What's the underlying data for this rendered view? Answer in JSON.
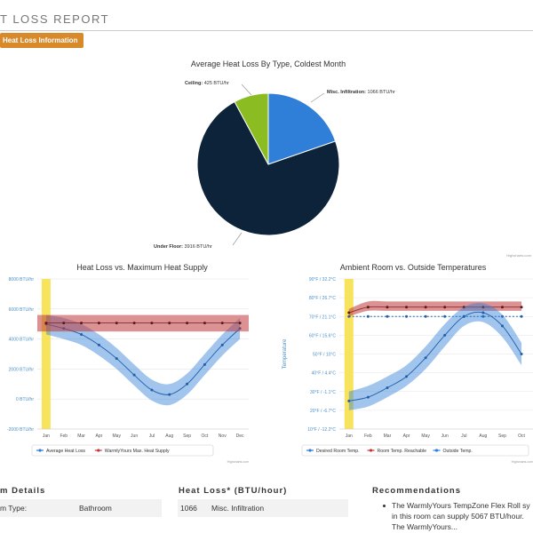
{
  "header": {
    "title": "T LOSS REPORT",
    "tab_label": "Heat Loss Information"
  },
  "chart_data": [
    {
      "type": "pie",
      "title": "Average Heat Loss By Type, Coldest Month",
      "slices": [
        {
          "name": "Misc. Infiltration",
          "label": "Misc. Infiltration: 1066 BTU/hr",
          "value": 1066,
          "color": "#2f7ed8"
        },
        {
          "name": "Under Floor",
          "label": "Under Floor: 3916 BTU/hr",
          "value": 3916,
          "color": "#0d233a"
        },
        {
          "name": "Ceiling",
          "label": "Ceiling: 425 BTU/hr",
          "value": 425,
          "color": "#8bbc21"
        }
      ],
      "credit": "Highcharts.com"
    },
    {
      "type": "line",
      "title": "Heat Loss vs. Maximum Heat Supply",
      "categories": [
        "Jan",
        "Feb",
        "Mar",
        "Apr",
        "May",
        "Jun",
        "Jul",
        "Aug",
        "Sep",
        "Oct",
        "Nov",
        "Dec"
      ],
      "y_ticks": [
        "8000 BTU/hr",
        "6000 BTU/hr",
        "4000 BTU/hr",
        "2000 BTU/hr",
        "0 BTU/hr",
        "-2000 BTU/hr"
      ],
      "ylim": [
        -2000,
        8000
      ],
      "highlight_category": "Jan",
      "series": [
        {
          "name": "Average Heat Loss",
          "color": "#2f7ed8",
          "values": [
            5000,
            4700,
            4300,
            3600,
            2700,
            1600,
            600,
            300,
            1000,
            2300,
            3600,
            4700
          ],
          "band": [
            [
              4300,
              5600
            ],
            [
              4000,
              5400
            ],
            [
              3600,
              5000
            ],
            [
              2900,
              4300
            ],
            [
              2000,
              3400
            ],
            [
              900,
              2300
            ],
            [
              -100,
              1300
            ],
            [
              -400,
              1000
            ],
            [
              300,
              1700
            ],
            [
              1600,
              3000
            ],
            [
              2900,
              4300
            ],
            [
              4000,
              5400
            ]
          ]
        },
        {
          "name": "WarmlyYours Max. Heat Supply",
          "color": "#c0393b",
          "values": [
            5067,
            5067,
            5067,
            5067,
            5067,
            5067,
            5067,
            5067,
            5067,
            5067,
            5067,
            5067
          ],
          "band": [
            4500,
            5600
          ]
        }
      ],
      "credit": "Highcharts.com"
    },
    {
      "type": "line",
      "title": "Ambient Room vs. Outside Temperatures",
      "ylabel": "Temperature",
      "categories": [
        "Jan",
        "Feb",
        "Mar",
        "Apr",
        "May",
        "Jun",
        "Jul",
        "Aug",
        "Sep",
        "Oct"
      ],
      "y_ticks": [
        "90°F / 32.2°C",
        "80°F / 26.7°C",
        "70°F / 21.1°C",
        "60°F / 15.6°C",
        "50°F / 10°C",
        "40°F / 4.4°C",
        "30°F / -1.1°C",
        "20°F / -6.7°C",
        "10°F / -12.2°C"
      ],
      "ylim": [
        10,
        90
      ],
      "highlight_category": "Jan",
      "series": [
        {
          "name": "Desired Room Temp.",
          "color": "#2f7ed8",
          "values": [
            70,
            70,
            70,
            70,
            70,
            70,
            70,
            70,
            70,
            70
          ]
        },
        {
          "name": "Room Temp. Reachable",
          "color": "#c0393b",
          "values": [
            72,
            75,
            75,
            75,
            75,
            75,
            75,
            75,
            75,
            75
          ],
          "band": [
            [
              70,
              74
            ],
            [
              73,
              78
            ],
            [
              73,
              78
            ],
            [
              73,
              78
            ],
            [
              73,
              78
            ],
            [
              73,
              78
            ],
            [
              73,
              78
            ],
            [
              73,
              78
            ],
            [
              73,
              78
            ],
            [
              73,
              78
            ]
          ]
        },
        {
          "name": "Outside Temp.",
          "color": "#2f7ed8",
          "values": [
            25,
            27,
            32,
            38,
            48,
            60,
            70,
            72,
            65,
            50
          ],
          "band": [
            [
              20,
              30
            ],
            [
              22,
              33
            ],
            [
              27,
              38
            ],
            [
              33,
              44
            ],
            [
              42,
              54
            ],
            [
              54,
              66
            ],
            [
              65,
              75
            ],
            [
              67,
              77
            ],
            [
              59,
              71
            ],
            [
              44,
              56
            ]
          ]
        }
      ],
      "credit": "Highcharts.com"
    }
  ],
  "room_details": {
    "heading": "m Details",
    "type_label": "m Type:",
    "type_value": "Bathroom"
  },
  "heat_loss_table": {
    "heading": "Heat Loss* (BTU/hour)",
    "value": "1066",
    "type": "Misc. Infiltration"
  },
  "recommendations": {
    "heading": "Recommendations",
    "line1": "The WarmlyYours TempZone Flex Roll sy",
    "line2": "in this room can supply 5067 BTU/hour.",
    "line3": "The WarmlyYours..."
  }
}
